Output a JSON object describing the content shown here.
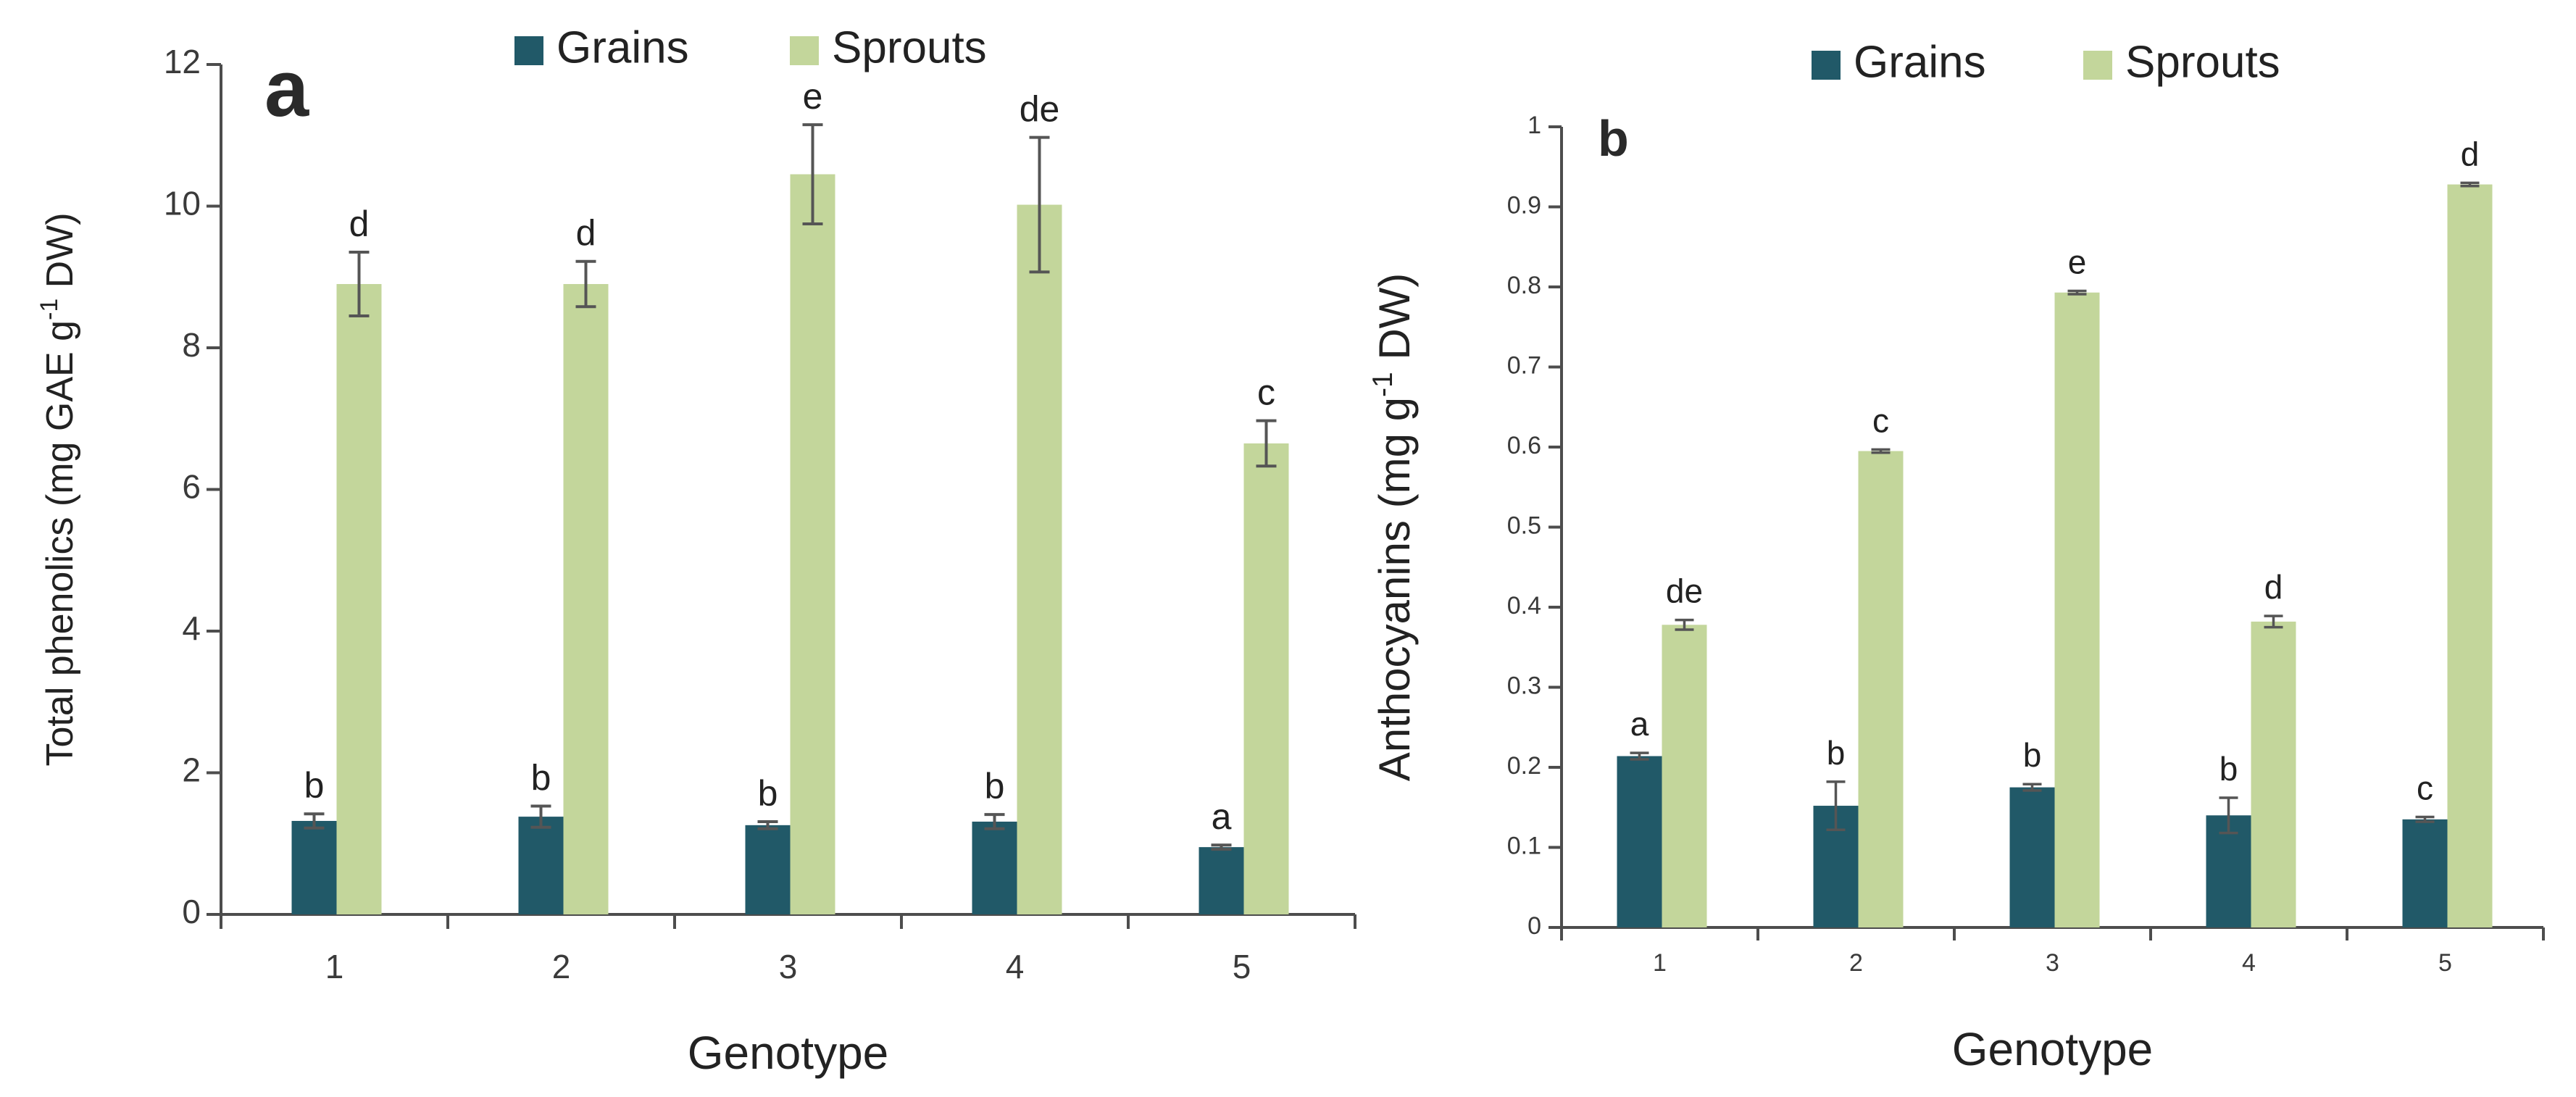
{
  "chart_data": [
    {
      "type": "bar",
      "panel_label": "a",
      "title": "",
      "xlabel": "Genotype",
      "ylabel_parts": [
        "Total phenolics (mg GAE g",
        "-1",
        " DW)"
      ],
      "categories": [
        "1",
        "2",
        "3",
        "4",
        "5"
      ],
      "ylim": [
        0,
        12
      ],
      "yticks": [
        "0",
        "2",
        "4",
        "6",
        "8",
        "10",
        "12"
      ],
      "grid": false,
      "legend_position": "top-center",
      "series": [
        {
          "name": "Grains",
          "color": "#215968",
          "values": [
            1.32,
            1.38,
            1.26,
            1.31,
            0.95
          ],
          "errors": [
            0.1,
            0.15,
            0.05,
            0.1,
            0.03
          ],
          "letters": [
            "b",
            "b",
            "b",
            "b",
            "a"
          ]
        },
        {
          "name": "Sprouts",
          "color": "#c3d69b",
          "values": [
            8.9,
            8.9,
            10.45,
            10.02,
            6.65
          ],
          "errors": [
            0.45,
            0.32,
            0.7,
            0.95,
            0.32
          ],
          "letters": [
            "d",
            "d",
            "e",
            "de",
            "c"
          ]
        }
      ]
    },
    {
      "type": "bar",
      "panel_label": "b",
      "title": "",
      "xlabel": "Genotype",
      "ylabel_parts": [
        "Anthocyanins (mg g",
        "-1",
        " DW)"
      ],
      "categories": [
        "1",
        "2",
        "3",
        "4",
        "5"
      ],
      "ylim": [
        0,
        1
      ],
      "yticks": [
        "0",
        "0.1",
        "0.2",
        "0.3",
        "0.4",
        "0.5",
        "0.6",
        "0.7",
        "0.8",
        "0.9",
        "1"
      ],
      "grid": false,
      "legend_position": "top-center",
      "series": [
        {
          "name": "Grains",
          "color": "#215968",
          "values": [
            0.214,
            0.152,
            0.175,
            0.14,
            0.135
          ],
          "errors": [
            0.004,
            0.03,
            0.004,
            0.022,
            0.003
          ],
          "letters": [
            "a",
            "b",
            "b",
            "b",
            "c"
          ]
        },
        {
          "name": "Sprouts",
          "color": "#c3d69b",
          "values": [
            0.378,
            0.595,
            0.793,
            0.382,
            0.928
          ],
          "errors": [
            0.006,
            0.002,
            0.002,
            0.007,
            0.002
          ],
          "letters": [
            "de",
            "c",
            "e",
            "d",
            "d"
          ]
        }
      ]
    }
  ]
}
